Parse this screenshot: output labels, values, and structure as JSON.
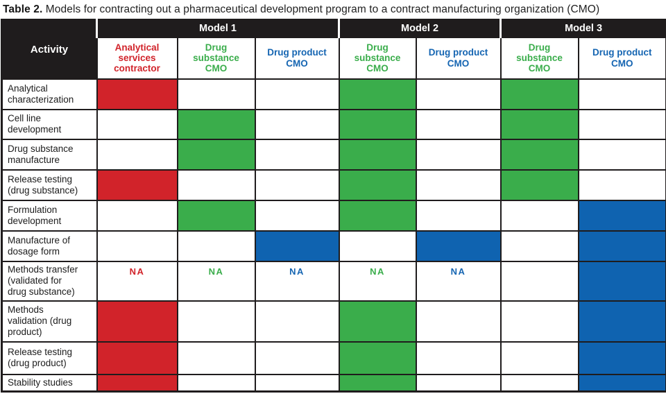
{
  "title": {
    "label": "Table 2.",
    "text": " Models for contracting out a pharmaceutical development program to a contract manufacturing organization (CMO)"
  },
  "colors": {
    "red": "#d1232a",
    "green": "#3aad4b",
    "blue": "#0f63b0",
    "header_bg": "#1f1c1d"
  },
  "table": {
    "activity_header": "Activity",
    "model_groups": [
      {
        "label": "Model 1",
        "span": 3
      },
      {
        "label": "Model 2",
        "span": 2
      },
      {
        "label": "Model 3",
        "span": 2
      }
    ],
    "columns": [
      {
        "label": "Analytical\nservices\ncontractor",
        "color": "red"
      },
      {
        "label": "Drug\nsubstance\nCMO",
        "color": "green"
      },
      {
        "label": "Drug product\nCMO",
        "color": "blue"
      },
      {
        "label": "Drug\nsubstance\nCMO",
        "color": "green"
      },
      {
        "label": "Drug product\nCMO",
        "color": "blue"
      },
      {
        "label": "Drug\nsubstance\nCMO",
        "color": "green"
      },
      {
        "label": "Drug product\nCMO",
        "color": "blue"
      }
    ],
    "rows": [
      {
        "activity": "Analytical\ncharacterization",
        "cells": [
          {
            "fill": "red"
          },
          {},
          {},
          {
            "fill": "green"
          },
          {},
          {
            "fill": "green"
          },
          {}
        ]
      },
      {
        "activity": "Cell line\ndevelopment",
        "cells": [
          {},
          {
            "fill": "green"
          },
          {},
          {
            "fill": "green"
          },
          {},
          {
            "fill": "green"
          },
          {}
        ]
      },
      {
        "activity": "Drug substance\nmanufacture",
        "cells": [
          {},
          {
            "fill": "green"
          },
          {},
          {
            "fill": "green"
          },
          {},
          {
            "fill": "green"
          },
          {}
        ]
      },
      {
        "activity": "Release testing\n(drug substance)",
        "cells": [
          {
            "fill": "red"
          },
          {},
          {},
          {
            "fill": "green"
          },
          {},
          {
            "fill": "green"
          },
          {}
        ]
      },
      {
        "activity": "Formulation\ndevelopment",
        "cells": [
          {},
          {
            "fill": "green"
          },
          {},
          {
            "fill": "green"
          },
          {},
          {},
          {
            "fill": "blue"
          }
        ]
      },
      {
        "activity": "Manufacture of\ndosage form",
        "cells": [
          {},
          {},
          {
            "fill": "blue"
          },
          {},
          {
            "fill": "blue"
          },
          {},
          {
            "fill": "blue"
          }
        ]
      },
      {
        "activity": "Methods transfer\n(validated for\ndrug substance)",
        "cells": [
          {
            "text": "NA",
            "text_color": "red"
          },
          {
            "text": "NA",
            "text_color": "green"
          },
          {
            "text": "NA",
            "text_color": "blue"
          },
          {
            "text": "NA",
            "text_color": "green"
          },
          {
            "text": "NA",
            "text_color": "blue"
          },
          {},
          {
            "fill": "blue"
          }
        ]
      },
      {
        "activity": "Methods\nvalidation (drug\nproduct)",
        "cells": [
          {
            "fill": "red"
          },
          {},
          {},
          {
            "fill": "green"
          },
          {},
          {},
          {
            "fill": "blue"
          }
        ]
      },
      {
        "activity": "Release testing\n(drug product)",
        "cells": [
          {
            "fill": "red"
          },
          {},
          {},
          {
            "fill": "green"
          },
          {},
          {},
          {
            "fill": "blue"
          }
        ]
      },
      {
        "activity": "Stability studies",
        "cells": [
          {
            "fill": "red"
          },
          {},
          {},
          {
            "fill": "green"
          },
          {},
          {},
          {
            "fill": "blue"
          }
        ]
      }
    ]
  }
}
